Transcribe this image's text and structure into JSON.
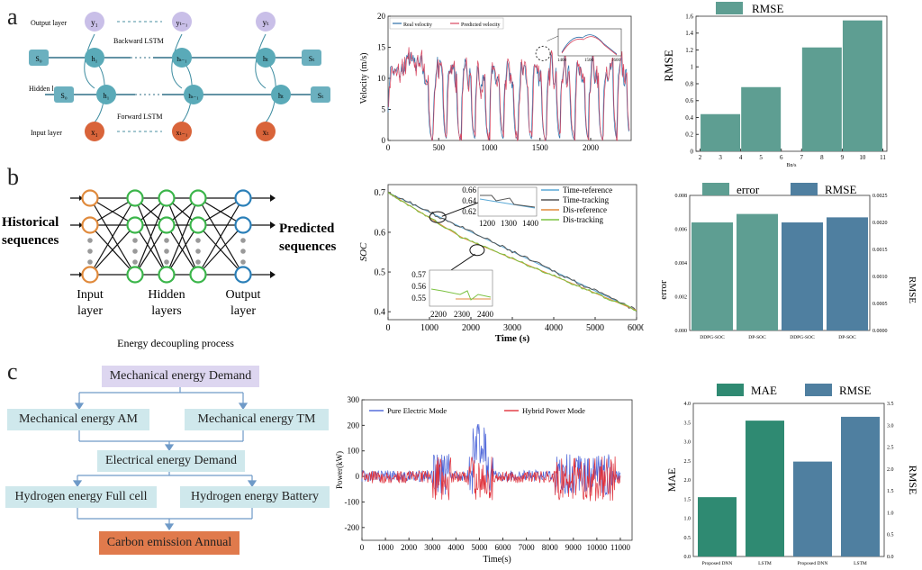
{
  "panel_labels": {
    "a": "a",
    "b": "b",
    "c": "c"
  },
  "lstm_diagram": {
    "row_labels": [
      "Output layer",
      "Hidden layer",
      "Input layer"
    ],
    "backward_label": "Backward LSTM",
    "forward_label": "Forward LSTM",
    "outputs": [
      "y₁",
      "yₜ₋₁",
      "yₜ"
    ],
    "inputs": [
      "x₁",
      "xₜ₋₁",
      "xₜ"
    ],
    "back_states": [
      "S₀",
      "h₁",
      "hₜ₋₁",
      "hₜ",
      "Sₜ"
    ],
    "fwd_states": [
      "S₀",
      "h₁",
      "hₜ₋₁",
      "hₜ",
      "Sₜ"
    ]
  },
  "nn_diagram": {
    "left_label": "Historical sequences",
    "left_line1": "Historical",
    "left_line2": "sequences",
    "right_line1": "Predicted",
    "right_line2": "sequences",
    "input_l1": "Input",
    "input_l2": "layer",
    "hidden_l1": "Hidden",
    "hidden_l2": "layers",
    "output_l1": "Output",
    "output_l2": "layer",
    "caption": "Energy decoupling process",
    "colors": {
      "input": "#e08a3c",
      "hidden": "#3bb54a",
      "output": "#2a7fb8"
    }
  },
  "flow": {
    "top": "Mechanical energy Demand",
    "am": "Mechanical energy AM",
    "tm": "Mechanical energy TM",
    "elec": "Electrical energy Demand",
    "fc": "Hydrogen energy Full cell",
    "bat": "Hydrogen energy Battery",
    "carbon": "Carbon emission Annual",
    "colors": {
      "top": "#ddd6f0",
      "box": "#cfe8ec",
      "carbon": "#e07a4c"
    }
  },
  "chart_data": [
    {
      "id": "velocity",
      "type": "line",
      "title": "",
      "xlabel": "",
      "ylabel": "Velocity (m/s)",
      "xlim": [
        0,
        2400
      ],
      "ylim": [
        0,
        20
      ],
      "xticks": [
        0,
        500,
        1000,
        1500,
        2000
      ],
      "yticks": [
        0,
        5,
        10,
        15,
        20
      ],
      "series": [
        {
          "name": "Real velocity",
          "color": "#2b6ea8"
        },
        {
          "name": "Predicted velocity",
          "color": "#d9455f"
        }
      ],
      "inset_xticks": [
        "1400",
        "1500",
        "1600"
      ]
    },
    {
      "id": "rmse_bp",
      "type": "bar",
      "xlabel": "Bp/s",
      "ylabel": "RMSE",
      "ylim": [
        0,
        1.6
      ],
      "yticks": [
        0,
        0.2,
        0.4,
        0.6,
        0.8,
        1.0,
        1.2,
        1.4,
        1.6
      ],
      "xticks": [
        2,
        3,
        4,
        5,
        6,
        7,
        8,
        9,
        10,
        11
      ],
      "x": [
        3,
        5,
        8,
        10
      ],
      "values": [
        0.44,
        0.76,
        1.23,
        1.55
      ],
      "series": [
        {
          "name": "RMSE",
          "color": "#5e9e92"
        }
      ]
    },
    {
      "id": "soc",
      "type": "line",
      "xlabel": "Time (s)",
      "ylabel": "SOC",
      "xlim": [
        0,
        6000
      ],
      "ylim": [
        0.38,
        0.72
      ],
      "xticks": [
        0,
        1000,
        2000,
        3000,
        4000,
        5000,
        6000
      ],
      "yticks": [
        0.4,
        0.5,
        0.6,
        0.7
      ],
      "series": [
        {
          "name": "Time-reference",
          "color": "#5aa9d6"
        },
        {
          "name": "Time-tracking",
          "color": "#555555"
        },
        {
          "name": "Dis-reference",
          "color": "#e08a3c"
        },
        {
          "name": "Dis-tracking",
          "color": "#7cc242"
        }
      ],
      "inset1": {
        "xticks": [
          "1200",
          "1300",
          "1400"
        ],
        "yticks": [
          "0.66",
          "0.64",
          "0.62"
        ]
      },
      "inset2": {
        "xticks": [
          "2200",
          "2300",
          "2400"
        ],
        "yticks": [
          "0.57",
          "0.56",
          "0.55"
        ]
      }
    },
    {
      "id": "error_rmse",
      "type": "bar",
      "ylabel": "error",
      "y2label": "RMSE",
      "categories": [
        "DDPG-SOC",
        "DP-SOC",
        "DDPG-SOC",
        "DP-SOC"
      ],
      "ylim": [
        0,
        0.008
      ],
      "y2lim": [
        0,
        0.0025
      ],
      "yticks": [
        0.0,
        0.002,
        0.004,
        0.006,
        0.008
      ],
      "y2ticks": [
        0.0,
        0.0005,
        0.001,
        0.0015,
        0.002,
        0.0025
      ],
      "values": [
        0.0064,
        0.0069,
        0.0064,
        0.0067
      ],
      "series": [
        {
          "name": "error",
          "color": "#5e9e92"
        },
        {
          "name": "RMSE",
          "color": "#4f7fa0"
        }
      ]
    },
    {
      "id": "power",
      "type": "line",
      "xlabel": "Time(s)",
      "ylabel": "Power(kW)",
      "xlim": [
        0,
        11500
      ],
      "ylim": [
        -250,
        300
      ],
      "xticks": [
        0,
        1000,
        2000,
        3000,
        4000,
        5000,
        6000,
        7000,
        8000,
        9000,
        10000,
        11000
      ],
      "yticks": [
        -200,
        -100,
        0,
        100,
        200,
        300
      ],
      "series": [
        {
          "name": "Pure Electric Mode",
          "color": "#4a63d8"
        },
        {
          "name": "Hybrid Power Mode",
          "color": "#e0323c"
        }
      ]
    },
    {
      "id": "mae_rmse",
      "type": "bar",
      "ylabel": "MAE",
      "y2label": "RMSE",
      "categories": [
        "Proposed DNN",
        "LSTM",
        "Proposed DNN",
        "LSTM"
      ],
      "ylim": [
        0,
        4.0
      ],
      "y2lim": [
        0,
        3.5
      ],
      "yticks": [
        0,
        0.5,
        1.0,
        1.5,
        2.0,
        2.5,
        3.0,
        3.5,
        4.0
      ],
      "y2ticks": [
        0,
        0.5,
        1.0,
        1.5,
        2.0,
        2.5,
        3.0,
        3.5
      ],
      "values": [
        1.55,
        3.55,
        2.48,
        3.65
      ],
      "series": [
        {
          "name": "MAE",
          "color": "#2f8a72"
        },
        {
          "name": "RMSE",
          "color": "#4f7fa0"
        }
      ]
    }
  ]
}
